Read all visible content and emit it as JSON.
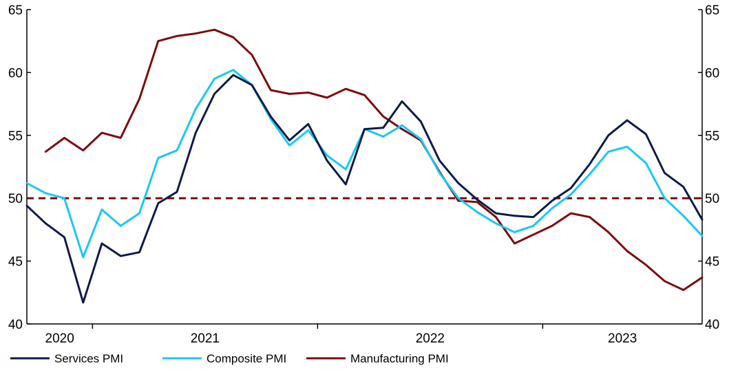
{
  "chart_data": {
    "type": "line",
    "x_categories": [
      "2020",
      "2021",
      "2022",
      "2023"
    ],
    "y_ticks": [
      40,
      45,
      50,
      55,
      60,
      65
    ],
    "ylim": [
      40,
      65
    ],
    "reference_line": 50,
    "grid": false,
    "legend_position": "bottom-left",
    "colors": {
      "Services PMI": "#0d1a45",
      "Composite PMI": "#18c8f2",
      "Manufacturing PMI": "#7c0a0e",
      "reference": "#7c0a0e"
    },
    "series": [
      {
        "name": "Services PMI",
        "start_index": 0,
        "values": [
          49.4,
          48.0,
          46.9,
          41.7,
          46.4,
          45.4,
          45.7,
          49.6,
          50.5,
          55.2,
          58.3,
          59.8,
          59.0,
          56.5,
          54.6,
          55.9,
          53.0,
          51.1,
          55.5,
          55.6,
          57.7,
          56.1,
          53.0,
          51.2,
          49.9,
          48.8,
          48.6,
          48.5,
          49.8,
          50.8,
          52.7,
          55.0,
          56.2,
          55.1,
          52.0,
          50.9,
          48.3
        ]
      },
      {
        "name": "Composite PMI",
        "start_index": 0,
        "values": [
          51.2,
          50.4,
          50.0,
          45.3,
          49.1,
          47.8,
          48.8,
          53.2,
          53.8,
          57.1,
          59.5,
          60.2,
          59.0,
          56.3,
          54.2,
          55.4,
          53.4,
          52.3,
          55.5,
          54.9,
          55.8,
          54.7,
          52.0,
          50.0,
          48.9,
          48.0,
          47.3,
          47.8,
          49.2,
          50.3,
          51.9,
          53.7,
          54.1,
          52.8,
          50.0,
          48.6,
          47.0
        ]
      },
      {
        "name": "Manufacturing PMI",
        "start_index": 1,
        "values": [
          53.7,
          54.8,
          53.8,
          55.2,
          54.8,
          57.9,
          62.5,
          62.9,
          63.1,
          63.4,
          62.8,
          61.4,
          58.6,
          58.3,
          58.4,
          58.0,
          58.7,
          58.2,
          56.5,
          55.5,
          54.6,
          52.1,
          49.8,
          49.7,
          48.5,
          46.4,
          47.1,
          47.8,
          48.8,
          48.5,
          47.3,
          45.8,
          44.7,
          43.4,
          42.7,
          43.7
        ]
      }
    ]
  },
  "legend": [
    {
      "label": "Services PMI",
      "color": "#0d1a45"
    },
    {
      "label": "Composite PMI",
      "color": "#18c8f2"
    },
    {
      "label": "Manufacturing PMI",
      "color": "#7c0a0e"
    }
  ]
}
